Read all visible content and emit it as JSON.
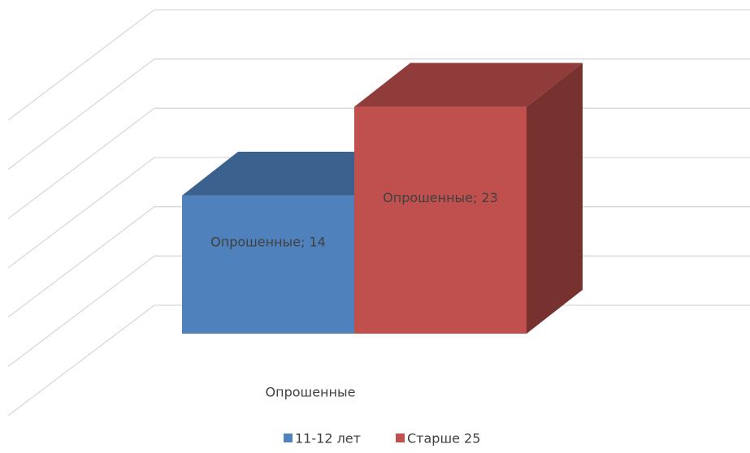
{
  "chart_data": {
    "type": "bar3d",
    "categories": [
      "Опрошенные"
    ],
    "series": [
      {
        "name": "11-12 лет",
        "color": "#4f81bd",
        "values": [
          14
        ],
        "value_labels": [
          "Опрошенные; 14"
        ]
      },
      {
        "name": "Старше 25",
        "color": "#c0504d",
        "values": [
          23
        ],
        "value_labels": [
          "Опрошенные; 23"
        ]
      }
    ],
    "ylim": [
      0,
      30
    ],
    "yticks": [
      0,
      5,
      10,
      15,
      20,
      25,
      30
    ],
    "grid": true,
    "legend": "bottom"
  }
}
